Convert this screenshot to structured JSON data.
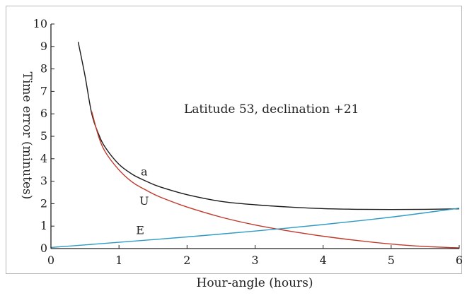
{
  "chart_data": {
    "type": "line",
    "annotation": "Latitude 53, declination +21",
    "xlabel": "Hour-angle (hours)",
    "ylabel": "Time error (minutes)",
    "xlim": [
      0,
      6
    ],
    "ylim": [
      0,
      10
    ],
    "xticks": [
      "0",
      "1",
      "2",
      "3",
      "4",
      "5",
      "6"
    ],
    "yticks": [
      "0",
      "1",
      "2",
      "3",
      "4",
      "5",
      "6",
      "7",
      "8",
      "9",
      "10"
    ],
    "grid": false,
    "series": [
      {
        "name": "a",
        "color": "#1a1a1a",
        "x": [
          0.4,
          0.5,
          0.6,
          0.7,
          0.8,
          1.0,
          1.2,
          1.4,
          1.6,
          2.0,
          2.5,
          3.0,
          3.5,
          4.0,
          4.5,
          5.0,
          5.5,
          6.0
        ],
        "y": [
          9.2,
          7.7,
          6.0,
          5.1,
          4.5,
          3.75,
          3.3,
          3.0,
          2.75,
          2.4,
          2.1,
          1.95,
          1.85,
          1.78,
          1.75,
          1.74,
          1.75,
          1.77
        ]
      },
      {
        "name": "U",
        "color": "#c0392b",
        "x": [
          0.6,
          0.7,
          0.8,
          1.0,
          1.2,
          1.4,
          1.6,
          2.0,
          2.5,
          3.0,
          3.5,
          4.0,
          4.5,
          5.0,
          5.5,
          6.0
        ],
        "y": [
          6.1,
          5.0,
          4.3,
          3.5,
          2.95,
          2.6,
          2.3,
          1.85,
          1.4,
          1.05,
          0.78,
          0.55,
          0.36,
          0.2,
          0.09,
          0.03
        ]
      },
      {
        "name": "E",
        "color": "#2e9bc4",
        "x": [
          0,
          1,
          2,
          3,
          4,
          5,
          6
        ],
        "y": [
          0.05,
          0.28,
          0.52,
          0.78,
          1.07,
          1.4,
          1.8
        ]
      }
    ],
    "label_positions": [
      {
        "name": "a",
        "x": 1.32,
        "y": 3.25
      },
      {
        "name": "U",
        "x": 1.3,
        "y": 1.95
      },
      {
        "name": "E",
        "x": 1.25,
        "y": 0.65
      }
    ]
  }
}
